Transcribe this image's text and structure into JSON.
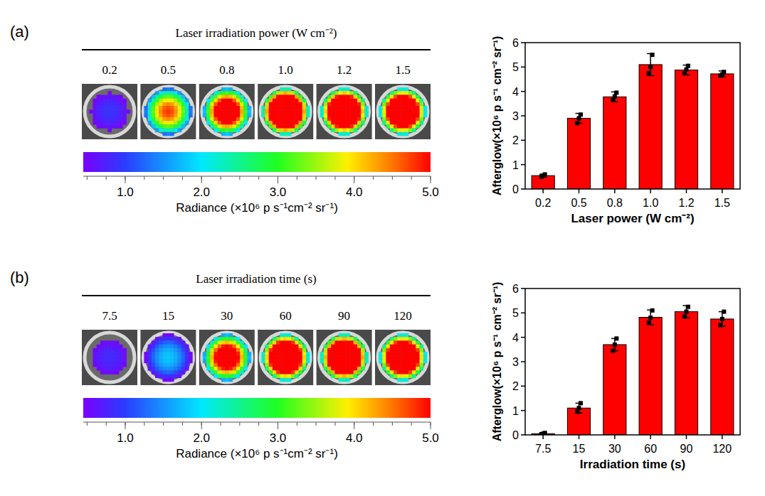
{
  "panels": [
    {
      "letter": "(a)",
      "strip_title": "Laser irradiation power (W cm⁻²)",
      "labels": [
        "0.2",
        "0.5",
        "0.8",
        "1.0",
        "1.2",
        "1.5"
      ],
      "colorbar": {
        "label": "Radiance (×10⁶ p s⁻¹cm⁻² sr⁻¹)",
        "range": [
          0.45,
          5.0
        ],
        "ticks": [
          {
            "value": 1,
            "label": "1.0"
          },
          {
            "value": 2,
            "label": "2.0"
          },
          {
            "value": 3,
            "label": "3.0"
          },
          {
            "value": 4,
            "label": "4.0"
          },
          {
            "value": 5,
            "label": "5.0"
          }
        ]
      }
    },
    {
      "letter": "(b)",
      "strip_title": "Laser irradiation time (s)",
      "labels": [
        "7.5",
        "15",
        "30",
        "60",
        "90",
        "120"
      ],
      "colorbar": {
        "label": "Radiance (×10⁶ p s⁻¹cm⁻² sr⁻¹)",
        "range": [
          0.45,
          5.0
        ],
        "ticks": [
          {
            "value": 1,
            "label": "1.0"
          },
          {
            "value": 2,
            "label": "2.0"
          },
          {
            "value": 3,
            "label": "3.0"
          },
          {
            "value": 4,
            "label": "4.0"
          },
          {
            "value": 5,
            "label": "5.0"
          }
        ]
      }
    }
  ],
  "chart_data": [
    {
      "type": "bar",
      "categories": [
        "0.2",
        "0.5",
        "0.8",
        "1.0",
        "1.2",
        "1.5"
      ],
      "values": [
        0.55,
        2.9,
        3.78,
        5.1,
        4.88,
        4.72
      ],
      "errors": [
        0.06,
        0.2,
        0.2,
        0.45,
        0.2,
        0.12
      ],
      "points": [
        [
          0.5,
          0.55,
          0.6
        ],
        [
          2.7,
          2.9,
          3.05
        ],
        [
          3.65,
          3.8,
          3.95
        ],
        [
          4.75,
          5.0,
          5.5
        ],
        [
          4.75,
          4.9,
          5.05
        ],
        [
          4.65,
          4.7,
          4.8
        ]
      ],
      "color": "#ff0000",
      "x_label": "Laser power (W cm⁻²)",
      "y_label": "Afterglow(×10⁶ p s⁻¹ cm⁻² sr⁻¹)",
      "ylim": [
        0,
        6
      ],
      "yticks": [
        0,
        1,
        2,
        3,
        4,
        5,
        6
      ]
    },
    {
      "type": "bar",
      "categories": [
        "7.5",
        "15",
        "30",
        "60",
        "90",
        "120"
      ],
      "values": [
        0.05,
        1.1,
        3.7,
        4.82,
        5.05,
        4.75
      ],
      "errors": [
        0.04,
        0.2,
        0.25,
        0.3,
        0.25,
        0.3
      ],
      "points": [
        [
          0.02,
          0.05,
          0.08
        ],
        [
          0.95,
          1.1,
          1.3
        ],
        [
          3.45,
          3.7,
          3.95
        ],
        [
          4.6,
          4.8,
          5.1
        ],
        [
          4.85,
          5.05,
          5.25
        ],
        [
          4.5,
          4.75,
          5.05
        ]
      ],
      "color": "#ff0000",
      "x_label": "Irradiation time (s)",
      "y_label": "Afterglow(×10⁶ p s⁻¹ cm⁻² sr⁻¹)",
      "ylim": [
        0,
        6
      ],
      "yticks": [
        0,
        1,
        2,
        3,
        4,
        5,
        6
      ]
    }
  ]
}
